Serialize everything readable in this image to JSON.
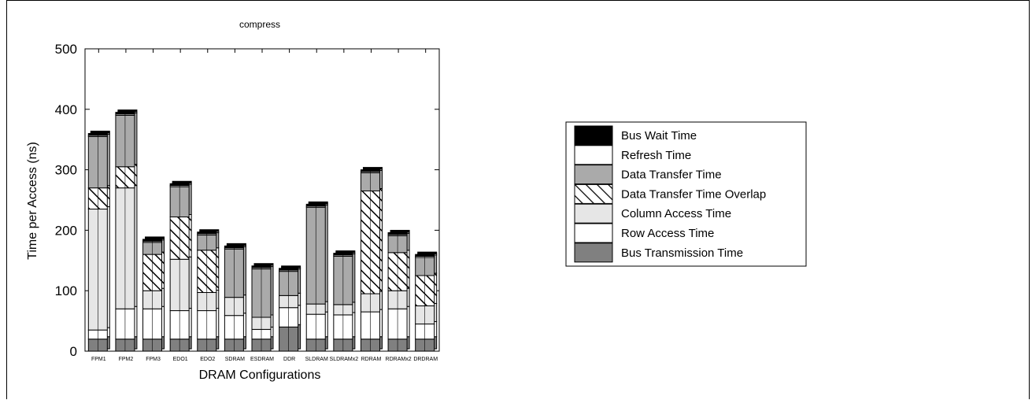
{
  "chart_data": {
    "type": "bar",
    "stacked": true,
    "title": "compress",
    "xlabel": "DRAM Configurations",
    "ylabel": "Time per Access (ns)",
    "ylim": [
      0,
      500
    ],
    "yticks": [
      0,
      100,
      200,
      300,
      400,
      500
    ],
    "grid": false,
    "legend_position": "right",
    "categories": [
      "FPM1",
      "FPM2",
      "FPM3",
      "EDO1",
      "EDO2",
      "SDRAM",
      "ESDRAM",
      "DDR",
      "SLDRAM",
      "SLDRAMx2",
      "RDRAM",
      "RDRAMx2",
      "DRDRAM"
    ],
    "series": [
      {
        "name": "Bus Transmission Time",
        "fill": "#808080",
        "pattern": "solid",
        "values": [
          20,
          20,
          20,
          20,
          20,
          20,
          20,
          40,
          20,
          20,
          20,
          20,
          20
        ]
      },
      {
        "name": "Row Access Time",
        "fill": "#ffffff",
        "pattern": "solid",
        "values": [
          15,
          50,
          50,
          47,
          47,
          39,
          16,
          32,
          41,
          40,
          45,
          50,
          25
        ]
      },
      {
        "name": "Column Access Time",
        "fill": "#e6e6e6",
        "pattern": "solid",
        "values": [
          200,
          200,
          30,
          85,
          30,
          30,
          20,
          20,
          17,
          17,
          30,
          30,
          30
        ]
      },
      {
        "name": "Data Transfer Time Overlap",
        "fill": "#ffffff",
        "pattern": "hatch",
        "values": [
          35,
          35,
          60,
          70,
          70,
          0,
          0,
          0,
          0,
          0,
          170,
          63,
          50
        ]
      },
      {
        "name": "Data Transfer Time",
        "fill": "#aaaaaa",
        "pattern": "solid",
        "values": [
          85,
          85,
          20,
          50,
          25,
          80,
          80,
          40,
          160,
          80,
          30,
          28,
          30
        ]
      },
      {
        "name": "Refresh Time",
        "fill": "#ffffff",
        "pattern": "solid",
        "values": [
          2,
          2,
          2,
          2,
          2,
          2,
          2,
          2,
          2,
          2,
          2,
          2,
          2
        ]
      },
      {
        "name": "Bus Wait Time",
        "fill": "#000000",
        "pattern": "solid",
        "values": [
          3,
          3,
          3,
          3,
          3,
          3,
          3,
          3,
          3,
          3,
          3,
          3,
          3
        ]
      }
    ]
  }
}
